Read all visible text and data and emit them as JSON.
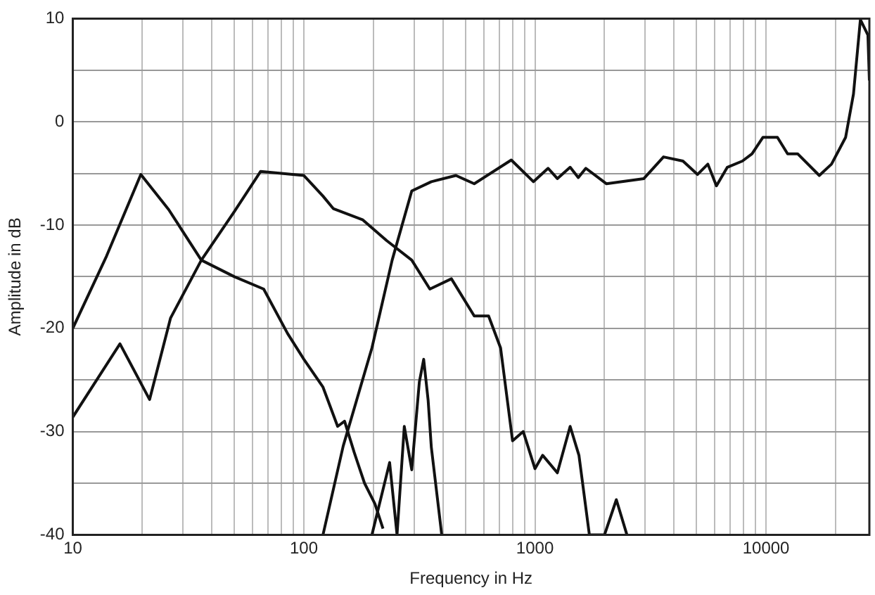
{
  "chart_data": {
    "type": "line",
    "xlabel": "Frequency in Hz",
    "ylabel": "Amplitude in dB",
    "log": "x",
    "grid": true,
    "marker": "none",
    "xlim": [
      10,
      28000
    ],
    "ylim": [
      -40,
      10
    ],
    "xticks": [
      10,
      {
        "value": 20,
        "label": null
      },
      {
        "value": 30,
        "label": null
      },
      {
        "value": 40,
        "label": null
      },
      {
        "value": 50,
        "label": null
      },
      {
        "value": 60,
        "label": null
      },
      {
        "value": 70,
        "label": null
      },
      {
        "value": 80,
        "label": null
      },
      {
        "value": 90,
        "label": null
      },
      100,
      {
        "value": 200,
        "label": null
      },
      {
        "value": 300,
        "label": null
      },
      {
        "value": 400,
        "label": null
      },
      {
        "value": 500,
        "label": null
      },
      {
        "value": 600,
        "label": null
      },
      {
        "value": 700,
        "label": null
      },
      {
        "value": 800,
        "label": null
      },
      {
        "value": 900,
        "label": null
      },
      1000,
      {
        "value": 2000,
        "label": null
      },
      {
        "value": 3000,
        "label": null
      },
      {
        "value": 4000,
        "label": null
      },
      {
        "value": 5000,
        "label": null
      },
      {
        "value": 6000,
        "label": null
      },
      {
        "value": 7000,
        "label": null
      },
      {
        "value": 8000,
        "label": null
      },
      {
        "value": 9000,
        "label": null
      },
      10000,
      {
        "value": 20000,
        "label": null
      }
    ],
    "yticks": [
      -40,
      {
        "value": -35,
        "label": null
      },
      -30,
      {
        "value": -25,
        "label": null
      },
      -20,
      {
        "value": -15,
        "label": null
      },
      -10,
      {
        "value": -5,
        "label": null
      },
      0,
      {
        "value": 5,
        "label": null
      },
      10
    ],
    "series": [
      {
        "color": "#111111",
        "x": [
          10,
          14,
          19.7,
          26,
          36,
          50,
          67,
          85,
          100,
          121,
          140,
          150,
          165,
          183,
          203,
          220
        ],
        "values": [
          -20,
          -13,
          -5.1,
          -8.5,
          -13.4,
          -15,
          -16.2,
          -20.5,
          -23,
          -25.7,
          -29.5,
          -29,
          -32,
          -35,
          -37,
          -39.4
        ]
      },
      {
        "color": "#111111",
        "x": [
          10,
          16,
          21.5,
          26.5,
          36,
          50,
          65,
          100,
          121,
          134,
          180,
          228,
          293,
          351,
          435,
          546,
          630,
          710,
          800,
          890,
          1000,
          1080,
          1250,
          1420,
          1550,
          1720,
          2000,
          2250,
          2500
        ],
        "values": [
          -28.6,
          -21.5,
          -26.9,
          -19,
          -13.4,
          -8.7,
          -4.8,
          -5.2,
          -7.2,
          -8.4,
          -9.5,
          -11.5,
          -13.4,
          -16.2,
          -15.2,
          -18.8,
          -18.8,
          -21.9,
          -30.9,
          -30,
          -33.6,
          -32.3,
          -34,
          -29.5,
          -32.3,
          -40,
          -40,
          -36.6,
          -40
        ]
      },
      {
        "color": "#111111",
        "x": [
          121,
          148,
          197,
          241,
          293,
          356,
          455,
          546,
          790,
          985,
          1140,
          1250,
          1420,
          1540,
          1660,
          2040,
          2960,
          3600,
          4370,
          5050,
          5600,
          6100,
          6800,
          7900,
          8700,
          9700,
          11200,
          12400,
          13700,
          17000,
          19200,
          22100,
          23900,
          25600,
          27600,
          28000
        ],
        "values": [
          -40,
          -31.4,
          -21.9,
          -13.4,
          -6.7,
          -5.8,
          -5.2,
          -6,
          -3.7,
          -5.8,
          -4.5,
          -5.5,
          -4.4,
          -5.4,
          -4.5,
          -6,
          -5.5,
          -3.4,
          -3.8,
          -5.1,
          -4.1,
          -6.2,
          -4.4,
          -3.8,
          -3.1,
          -1.5,
          -1.5,
          -3.1,
          -3.1,
          -5.2,
          -4.1,
          -1.5,
          2.7,
          9.9,
          8.4,
          4
        ]
      },
      {
        "color": "#111111",
        "x": [
          197,
          235,
          253,
          272,
          293,
          316,
          330,
          345,
          356,
          395
        ],
        "values": [
          -40,
          -33,
          -40,
          -29.5,
          -33.7,
          -25.2,
          -23,
          -27,
          -31.5,
          -40
        ]
      }
    ]
  }
}
